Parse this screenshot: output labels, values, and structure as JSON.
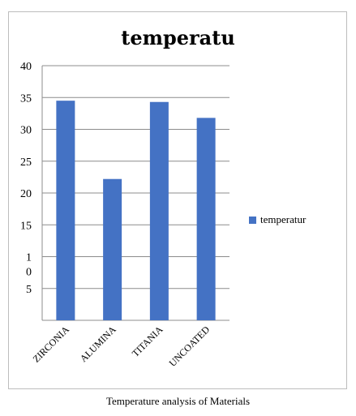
{
  "chart_data": {
    "type": "bar",
    "title": "temperatu",
    "categories": [
      "ZIRCONIA",
      "ALUMINA",
      "TITANIA",
      "UNCOATED"
    ],
    "series": [
      {
        "name": "temperatur",
        "values": [
          34.5,
          22.2,
          34.3,
          31.8
        ],
        "color": "#4472c4"
      }
    ],
    "ylim": [
      0,
      40
    ],
    "yticks": [
      0,
      5,
      10,
      15,
      20,
      25,
      30,
      35,
      40
    ],
    "ytick_labels": [
      "",
      "5",
      "1\n0",
      "15",
      "20",
      "25",
      "30",
      "35",
      "40"
    ],
    "grid": true,
    "legend_position": "right"
  },
  "caption": "Temperature analysis of Materials"
}
